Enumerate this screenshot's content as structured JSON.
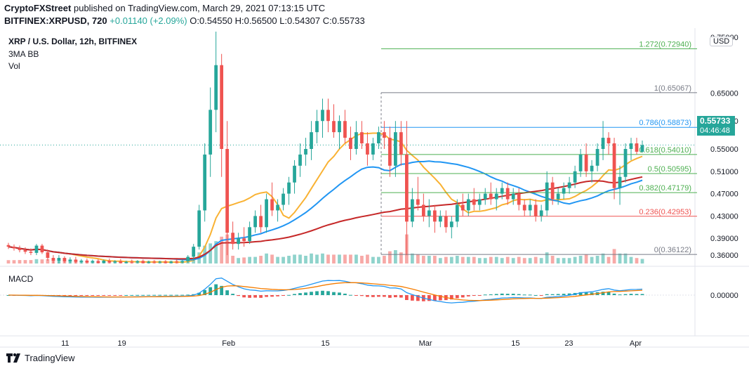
{
  "header": {
    "publisher": "CryptoFXStreet",
    "published_text": "published on TradingView.com, March 29, 2021 07:13:15 UTC",
    "symbol_line": "BITFINEX:XRPUSD, 720",
    "change": "+0.01140 (+2.09%)",
    "open": "O:0.54550",
    "high": "H:0.56500",
    "low": "L:0.54307",
    "close": "C:0.55733"
  },
  "legend": {
    "title": "XRP / U.S. Dollar, 12h, BITFINEX",
    "indicator1": "3MA BB",
    "indicator2": "Vol",
    "macd": "MACD"
  },
  "price_axis": {
    "currency": "USD",
    "last_price": "0.55733",
    "countdown": "04:46:48"
  },
  "footer": {
    "brand": "TradingView"
  },
  "colors": {
    "up": "#26a69a",
    "down": "#ef5350",
    "ma_blue": "#2196f3",
    "ma_orange": "#f9b233",
    "ma_red": "#c62828",
    "fib_green": "#4caf50",
    "fib_grey": "#787b86",
    "fib_blue": "#2196f3",
    "fib_red": "#ef5350",
    "macd_line": "#2196f3",
    "signal_line": "#f57c00"
  },
  "chart_data": {
    "type": "candlestick",
    "title": "XRP / U.S. Dollar, 12h, BITFINEX",
    "ylim": [
      0.345,
      0.76
    ],
    "y_ticks": [
      "0.75000",
      "0.65000",
      "0.60000",
      "0.55000",
      "0.51000",
      "0.47000",
      "0.43000",
      "0.39000",
      "0.36000"
    ],
    "x_ticks": [
      "11",
      "19",
      "Feb",
      "15",
      "Mar",
      "15",
      "23",
      "Apr"
    ],
    "fibonacci": [
      {
        "label": "0(0.36122)",
        "value": 0.36122,
        "color": "#787b86"
      },
      {
        "label": "0.236(0.42953)",
        "value": 0.42953,
        "color": "#ef5350"
      },
      {
        "label": "0.382(0.47179)",
        "value": 0.47179,
        "color": "#4caf50"
      },
      {
        "label": "0.5(0.50595)",
        "value": 0.50595,
        "color": "#4caf50"
      },
      {
        "label": "0.618(0.54010)",
        "value": 0.5401,
        "color": "#4caf50"
      },
      {
        "label": "0.786(0.58873)",
        "value": 0.58873,
        "color": "#2196f3"
      },
      {
        "label": "1(0.65067)",
        "value": 0.65067,
        "color": "#787b86"
      },
      {
        "label": "1.272(0.72940)",
        "value": 0.7294,
        "color": "#4caf50"
      }
    ],
    "macd_ticks": [
      "0.00000"
    ],
    "candles": [
      [
        0.378,
        0.382,
        0.371,
        0.375
      ],
      [
        0.375,
        0.379,
        0.368,
        0.372
      ],
      [
        0.372,
        0.377,
        0.365,
        0.369
      ],
      [
        0.369,
        0.374,
        0.362,
        0.366
      ],
      [
        0.366,
        0.372,
        0.36,
        0.364
      ],
      [
        0.364,
        0.38,
        0.36,
        0.377
      ],
      [
        0.377,
        0.38,
        0.362,
        0.365
      ],
      [
        0.365,
        0.37,
        0.35,
        0.355
      ],
      [
        0.355,
        0.36,
        0.345,
        0.35
      ],
      [
        0.35,
        0.36,
        0.345,
        0.355
      ],
      [
        0.355,
        0.358,
        0.346,
        0.349
      ],
      [
        0.349,
        0.356,
        0.345,
        0.352
      ],
      [
        0.352,
        0.357,
        0.345,
        0.348
      ],
      [
        0.348,
        0.353,
        0.345,
        0.35
      ],
      [
        0.35,
        0.354,
        0.345,
        0.347
      ],
      [
        0.347,
        0.352,
        0.345,
        0.349
      ],
      [
        0.349,
        0.353,
        0.345,
        0.346
      ],
      [
        0.346,
        0.352,
        0.345,
        0.35
      ],
      [
        0.35,
        0.354,
        0.345,
        0.347
      ],
      [
        0.347,
        0.351,
        0.345,
        0.349
      ],
      [
        0.349,
        0.353,
        0.345,
        0.346
      ],
      [
        0.346,
        0.35,
        0.345,
        0.348
      ],
      [
        0.348,
        0.352,
        0.345,
        0.347
      ],
      [
        0.347,
        0.351,
        0.345,
        0.349
      ],
      [
        0.349,
        0.352,
        0.345,
        0.346
      ],
      [
        0.346,
        0.35,
        0.345,
        0.348
      ],
      [
        0.348,
        0.351,
        0.345,
        0.347
      ],
      [
        0.347,
        0.35,
        0.345,
        0.348
      ],
      [
        0.348,
        0.351,
        0.345,
        0.346
      ],
      [
        0.346,
        0.35,
        0.345,
        0.348
      ],
      [
        0.348,
        0.352,
        0.345,
        0.347
      ],
      [
        0.347,
        0.351,
        0.345,
        0.349
      ],
      [
        0.349,
        0.36,
        0.346,
        0.357
      ],
      [
        0.357,
        0.38,
        0.35,
        0.375
      ],
      [
        0.375,
        0.45,
        0.37,
        0.44
      ],
      [
        0.44,
        0.56,
        0.42,
        0.54
      ],
      [
        0.54,
        0.66,
        0.5,
        0.62
      ],
      [
        0.62,
        0.76,
        0.58,
        0.7
      ],
      [
        0.7,
        0.72,
        0.5,
        0.55
      ],
      [
        0.55,
        0.6,
        0.36,
        0.4
      ],
      [
        0.4,
        0.42,
        0.37,
        0.38
      ],
      [
        0.38,
        0.4,
        0.37,
        0.39
      ],
      [
        0.39,
        0.41,
        0.375,
        0.385
      ],
      [
        0.385,
        0.42,
        0.38,
        0.41
      ],
      [
        0.41,
        0.44,
        0.4,
        0.43
      ],
      [
        0.43,
        0.45,
        0.4,
        0.41
      ],
      [
        0.41,
        0.47,
        0.4,
        0.46
      ],
      [
        0.46,
        0.49,
        0.43,
        0.44
      ],
      [
        0.44,
        0.46,
        0.42,
        0.45
      ],
      [
        0.45,
        0.48,
        0.44,
        0.47
      ],
      [
        0.47,
        0.5,
        0.45,
        0.49
      ],
      [
        0.49,
        0.53,
        0.47,
        0.52
      ],
      [
        0.52,
        0.56,
        0.5,
        0.54
      ],
      [
        0.54,
        0.57,
        0.52,
        0.55
      ],
      [
        0.55,
        0.6,
        0.53,
        0.58
      ],
      [
        0.58,
        0.62,
        0.56,
        0.6
      ],
      [
        0.6,
        0.64,
        0.57,
        0.62
      ],
      [
        0.62,
        0.64,
        0.58,
        0.6
      ],
      [
        0.6,
        0.63,
        0.57,
        0.58
      ],
      [
        0.58,
        0.61,
        0.55,
        0.6
      ],
      [
        0.6,
        0.62,
        0.56,
        0.57
      ],
      [
        0.57,
        0.59,
        0.53,
        0.55
      ],
      [
        0.55,
        0.6,
        0.54,
        0.58
      ],
      [
        0.58,
        0.6,
        0.55,
        0.56
      ],
      [
        0.56,
        0.58,
        0.52,
        0.54
      ],
      [
        0.54,
        0.57,
        0.53,
        0.56
      ],
      [
        0.56,
        0.59,
        0.55,
        0.58
      ],
      [
        0.58,
        0.6,
        0.55,
        0.57
      ],
      [
        0.57,
        0.59,
        0.5,
        0.52
      ],
      [
        0.52,
        0.6,
        0.5,
        0.58
      ],
      [
        0.58,
        0.6,
        0.52,
        0.54
      ],
      [
        0.54,
        0.6,
        0.36,
        0.42
      ],
      [
        0.42,
        0.48,
        0.41,
        0.46
      ],
      [
        0.46,
        0.5,
        0.44,
        0.45
      ],
      [
        0.45,
        0.47,
        0.42,
        0.43
      ],
      [
        0.43,
        0.46,
        0.41,
        0.44
      ],
      [
        0.44,
        0.45,
        0.4,
        0.42
      ],
      [
        0.42,
        0.44,
        0.41,
        0.43
      ],
      [
        0.43,
        0.44,
        0.4,
        0.41
      ],
      [
        0.41,
        0.43,
        0.39,
        0.42
      ],
      [
        0.42,
        0.46,
        0.41,
        0.45
      ],
      [
        0.45,
        0.47,
        0.43,
        0.44
      ],
      [
        0.44,
        0.47,
        0.43,
        0.46
      ],
      [
        0.46,
        0.48,
        0.44,
        0.45
      ],
      [
        0.45,
        0.47,
        0.44,
        0.46
      ],
      [
        0.46,
        0.48,
        0.45,
        0.47
      ],
      [
        0.47,
        0.49,
        0.45,
        0.46
      ],
      [
        0.46,
        0.48,
        0.44,
        0.47
      ],
      [
        0.47,
        0.49,
        0.46,
        0.48
      ],
      [
        0.48,
        0.49,
        0.45,
        0.46
      ],
      [
        0.46,
        0.48,
        0.45,
        0.47
      ],
      [
        0.47,
        0.48,
        0.44,
        0.45
      ],
      [
        0.45,
        0.46,
        0.43,
        0.44
      ],
      [
        0.44,
        0.46,
        0.43,
        0.45
      ],
      [
        0.45,
        0.46,
        0.42,
        0.43
      ],
      [
        0.43,
        0.45,
        0.42,
        0.44
      ],
      [
        0.44,
        0.51,
        0.43,
        0.49
      ],
      [
        0.49,
        0.5,
        0.45,
        0.46
      ],
      [
        0.46,
        0.48,
        0.45,
        0.47
      ],
      [
        0.47,
        0.49,
        0.46,
        0.48
      ],
      [
        0.48,
        0.5,
        0.47,
        0.49
      ],
      [
        0.49,
        0.52,
        0.48,
        0.51
      ],
      [
        0.51,
        0.55,
        0.5,
        0.54
      ],
      [
        0.54,
        0.56,
        0.5,
        0.51
      ],
      [
        0.51,
        0.53,
        0.49,
        0.52
      ],
      [
        0.52,
        0.56,
        0.51,
        0.55
      ],
      [
        0.55,
        0.6,
        0.53,
        0.57
      ],
      [
        0.57,
        0.58,
        0.54,
        0.56
      ],
      [
        0.56,
        0.57,
        0.46,
        0.48
      ],
      [
        0.48,
        0.52,
        0.45,
        0.5
      ],
      [
        0.5,
        0.56,
        0.49,
        0.55
      ],
      [
        0.55,
        0.57,
        0.53,
        0.56
      ],
      [
        0.56,
        0.57,
        0.54,
        0.545
      ],
      [
        0.545,
        0.565,
        0.543,
        0.557
      ]
    ]
  }
}
